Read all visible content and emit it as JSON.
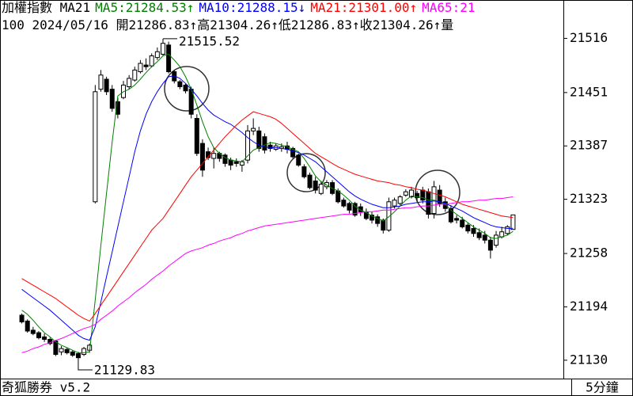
{
  "chart_data": {
    "type": "candlestick",
    "title": "加權指數 MA21",
    "subtitle": "100 2024/05/16 開21286.83↑高21304.26↑低21286.83↑收21304.26↑量",
    "categories": [
      null,
      null,
      null,
      null,
      null,
      null,
      null,
      null,
      null,
      null,
      null,
      null,
      null,
      null,
      null,
      null,
      null,
      null,
      null,
      null,
      null,
      null,
      null,
      null,
      null,
      null,
      null,
      null,
      null,
      null,
      null,
      null,
      null,
      null,
      null,
      null,
      null,
      null,
      null,
      null,
      null,
      null,
      null,
      null,
      null,
      null,
      null,
      null,
      null,
      null,
      null,
      null,
      null,
      null,
      null,
      null,
      null,
      null,
      null,
      null,
      null,
      null,
      null,
      null,
      null,
      null,
      null,
      null,
      null,
      null,
      null,
      null,
      null,
      null,
      null,
      null,
      null,
      null,
      null,
      null,
      null,
      null,
      null,
      null,
      null,
      null,
      null,
      null
    ],
    "open": [
      21184,
      21177,
      21166,
      21163,
      21158,
      21155,
      21153,
      21140,
      21143,
      21140,
      21138,
      21137,
      21142,
      21320,
      21455,
      21467,
      21455,
      21440,
      21445,
      21458,
      21466,
      21476,
      21484,
      21483,
      21493,
      21497,
      21508,
      21476,
      21464,
      21460,
      21455,
      21420,
      21390,
      21380,
      21372,
      21378,
      21376,
      21370,
      21368,
      21364,
      21370,
      21405,
      21405,
      21398,
      21388,
      21383,
      21384,
      21387,
      21384,
      21376,
      21362,
      21352,
      21345,
      21330,
      21338,
      21343,
      21333,
      21322,
      21318,
      21318,
      21314,
      21308,
      21304,
      21302,
      21298,
      21286,
      21315,
      21318,
      21328,
      21326,
      21330,
      21334,
      21332,
      21306,
      21334,
      21320,
      21312,
      21300,
      21298,
      21292,
      21288,
      21283,
      21280,
      21274,
      21268,
      21278,
      21282,
      21286.83
    ],
    "high": [
      21186,
      21179,
      21170,
      21165,
      21162,
      21157,
      21154,
      21147,
      21145,
      21142,
      21140,
      21146,
      21150,
      21460,
      21478,
      21470,
      21460,
      21445,
      21465,
      21472,
      21482,
      21490,
      21492,
      21498,
      21505,
      21515.52,
      21512,
      21478,
      21466,
      21462,
      21458,
      21425,
      21395,
      21385,
      21385,
      21380,
      21378,
      21373,
      21372,
      21370,
      21412,
      21420,
      21410,
      21402,
      21392,
      21390,
      21390,
      21392,
      21386,
      21378,
      21365,
      21355,
      21350,
      21345,
      21346,
      21346,
      21336,
      21325,
      21320,
      21320,
      21318,
      21312,
      21308,
      21305,
      21300,
      21325,
      21325,
      21328,
      21335,
      21338,
      21333,
      21338,
      21336,
      21345,
      21340,
      21325,
      21316,
      21304,
      21302,
      21295,
      21292,
      21288,
      21285,
      21278,
      21285,
      21290,
      21292,
      21304.26
    ],
    "low": [
      21174,
      21163,
      21160,
      21155,
      21152,
      21148,
      21135,
      21136,
      21137,
      21134,
      21129.83,
      21135,
      21139,
      21318,
      21452,
      21448,
      21428,
      21420,
      21443,
      21455,
      21464,
      21474,
      21478,
      21481,
      21490,
      21495,
      21474,
      21462,
      21455,
      21450,
      21420,
      21375,
      21350,
      21370,
      21360,
      21368,
      21362,
      21358,
      21362,
      21356,
      21366,
      21400,
      21380,
      21378,
      21380,
      21381,
      21380,
      21378,
      21372,
      21362,
      21348,
      21335,
      21330,
      21328,
      21335,
      21328,
      21318,
      21313,
      21306,
      21302,
      21303,
      21298,
      21294,
      21290,
      21282,
      21284,
      21312,
      21316,
      21326,
      21324,
      21320,
      21318,
      21300,
      21300,
      21314,
      21308,
      21294,
      21294,
      21288,
      21282,
      21278,
      21274,
      21270,
      21252,
      21265,
      21276,
      21280,
      21286.83
    ],
    "close": [
      21176,
      21165,
      21162,
      21157,
      21155,
      21150,
      21137,
      21144,
      21139,
      21136,
      21133,
      21144,
      21148,
      21452,
      21472,
      21452,
      21432,
      21425,
      21460,
      21468,
      21478,
      21486,
      21482,
      21495,
      21500,
      21510,
      21476,
      21465,
      21458,
      21453,
      21425,
      21378,
      21358,
      21373,
      21378,
      21372,
      21366,
      21364,
      21366,
      21368,
      21405,
      21408,
      21384,
      21382,
      21384,
      21387,
      21386,
      21383,
      21374,
      21364,
      21350,
      21337,
      21334,
      21341,
      21343,
      21330,
      21320,
      21315,
      21310,
      21304,
      21308,
      21300,
      21298,
      21294,
      21286,
      21320,
      21322,
      21326,
      21332,
      21334,
      21325,
      21322,
      21305,
      21338,
      21318,
      21312,
      21296,
      21298,
      21290,
      21285,
      21282,
      21277,
      21274,
      21262,
      21280,
      21284,
      21290,
      21304.26
    ],
    "up_color": "#ffffff",
    "down_color": "#000000",
    "series": [
      {
        "name": "MA5:21284.53↑",
        "color": "#008000",
        "values": [
          21190,
          21185,
          21178,
          21170,
          21163,
          21158,
          21152,
          21148,
          21145,
          21142,
          21139,
          21139,
          21140,
          21202,
          21268,
          21330,
          21392,
          21447,
          21452,
          21455,
          21460,
          21467,
          21475,
          21482,
          21488,
          21495,
          21497,
          21490,
          21482,
          21470,
          21455,
          21436,
          21416,
          21398,
          21385,
          21378,
          21373,
          21370,
          21369,
          21368,
          21375,
          21382,
          21385,
          21388,
          21391,
          21390,
          21388,
          21386,
          21383,
          21380,
          21372,
          21362,
          21351,
          21344,
          21340,
          21336,
          21333,
          21328,
          21322,
          21315,
          21310,
          21307,
          21303,
          21300,
          21297,
          21302,
          21308,
          21315,
          21322,
          21327,
          21326,
          21325,
          21322,
          21322,
          21320,
          21317,
          21310,
          21305,
          21300,
          21295,
          21290,
          21286,
          21282,
          21277,
          21276,
          21278,
          21280,
          21284.53
        ]
      },
      {
        "name": "MA10:21288.15↓",
        "color": "#0000ff",
        "values": [
          21215,
          21210,
          21205,
          21200,
          21195,
          21190,
          21184,
          21178,
          21172,
          21166,
          21160,
          21156,
          21154,
          21170,
          21200,
          21230,
          21260,
          21290,
          21320,
          21350,
          21380,
          21405,
          21425,
          21440,
          21452,
          21462,
          21470,
          21471,
          21468,
          21462,
          21455,
          21447,
          21438,
          21430,
          21424,
          21420,
          21416,
          21413,
          21408,
          21403,
          21397,
          21392,
          21388,
          21386,
          21385,
          21385,
          21384,
          21383,
          21381,
          21379,
          21376,
          21372,
          21368,
          21362,
          21356,
          21350,
          21344,
          21338,
          21332,
          21327,
          21323,
          21320,
          21317,
          21315,
          21313,
          21313,
          21314,
          21315,
          21317,
          21318,
          21319,
          21320,
          21320,
          21321,
          21320,
          21318,
          21315,
          21312,
          21309,
          21305,
          21301,
          21298,
          21295,
          21292,
          21290,
          21289,
          21288,
          21288.15
        ]
      },
      {
        "name": "MA21:21301.00↑",
        "color": "#ff0000",
        "values": [
          21228,
          21224,
          21220,
          21216,
          21212,
          21208,
          21204,
          21199,
          21194,
          21189,
          21184,
          21180,
          21177,
          21186,
          21196,
          21206,
          21216,
          21226,
          21236,
          21246,
          21256,
          21266,
          21276,
          21286,
          21293,
          21300,
          21310,
          21320,
          21330,
          21340,
          21350,
          21358,
          21366,
          21374,
          21382,
          21390,
          21398,
          21405,
          21412,
          21418,
          21423,
          21428,
          21426,
          21424,
          21422,
          21419,
          21414,
          21408,
          21402,
          21396,
          21390,
          21384,
          21378,
          21374,
          21370,
          21366,
          21362,
          21359,
          21356,
          21353,
          21351,
          21349,
          21347,
          21345,
          21344,
          21343,
          21341,
          21340,
          21338,
          21337,
          21335,
          21334,
          21332,
          21330,
          21328,
          21326,
          21323,
          21320,
          21317,
          21315,
          21313,
          21311,
          21309,
          21307,
          21305,
          21303,
          21302,
          21301
        ]
      },
      {
        "name": "MA65:21",
        "color": "#ff00ff",
        "values": [
          21139,
          21141,
          21144,
          21146,
          21149,
          21151,
          21154,
          21156,
          21159,
          21162,
          21165,
          21168,
          21170,
          21173,
          21179,
          21184,
          21189,
          21195,
          21200,
          21205,
          21211,
          21216,
          21221,
          21227,
          21232,
          21237,
          21243,
          21248,
          21253,
          21258,
          21261,
          21263,
          21265,
          21268,
          21270,
          21273,
          21275,
          21277,
          21280,
          21282,
          21285,
          21287,
          21289,
          21291,
          21292,
          21293,
          21294,
          21295,
          21296,
          21297,
          21298,
          21299,
          21300,
          21301,
          21302,
          21303,
          21304,
          21305,
          21305,
          21306,
          21307,
          21308,
          21308,
          21309,
          21310,
          21310,
          21311,
          21312,
          21313,
          21313,
          21314,
          21315,
          21315,
          21316,
          21317,
          21317,
          21318,
          21319,
          21320,
          21320,
          21321,
          21322,
          21322,
          21323,
          21324,
          21324,
          21325,
          21326
        ]
      }
    ],
    "ylim": [
      21108,
      21543
    ],
    "yticks": [
      21130,
      21194,
      21258,
      21323,
      21387,
      21451,
      21516
    ]
  },
  "status_bar": {
    "app": "奇狐勝券 v5.2",
    "interval": "5分鐘"
  }
}
